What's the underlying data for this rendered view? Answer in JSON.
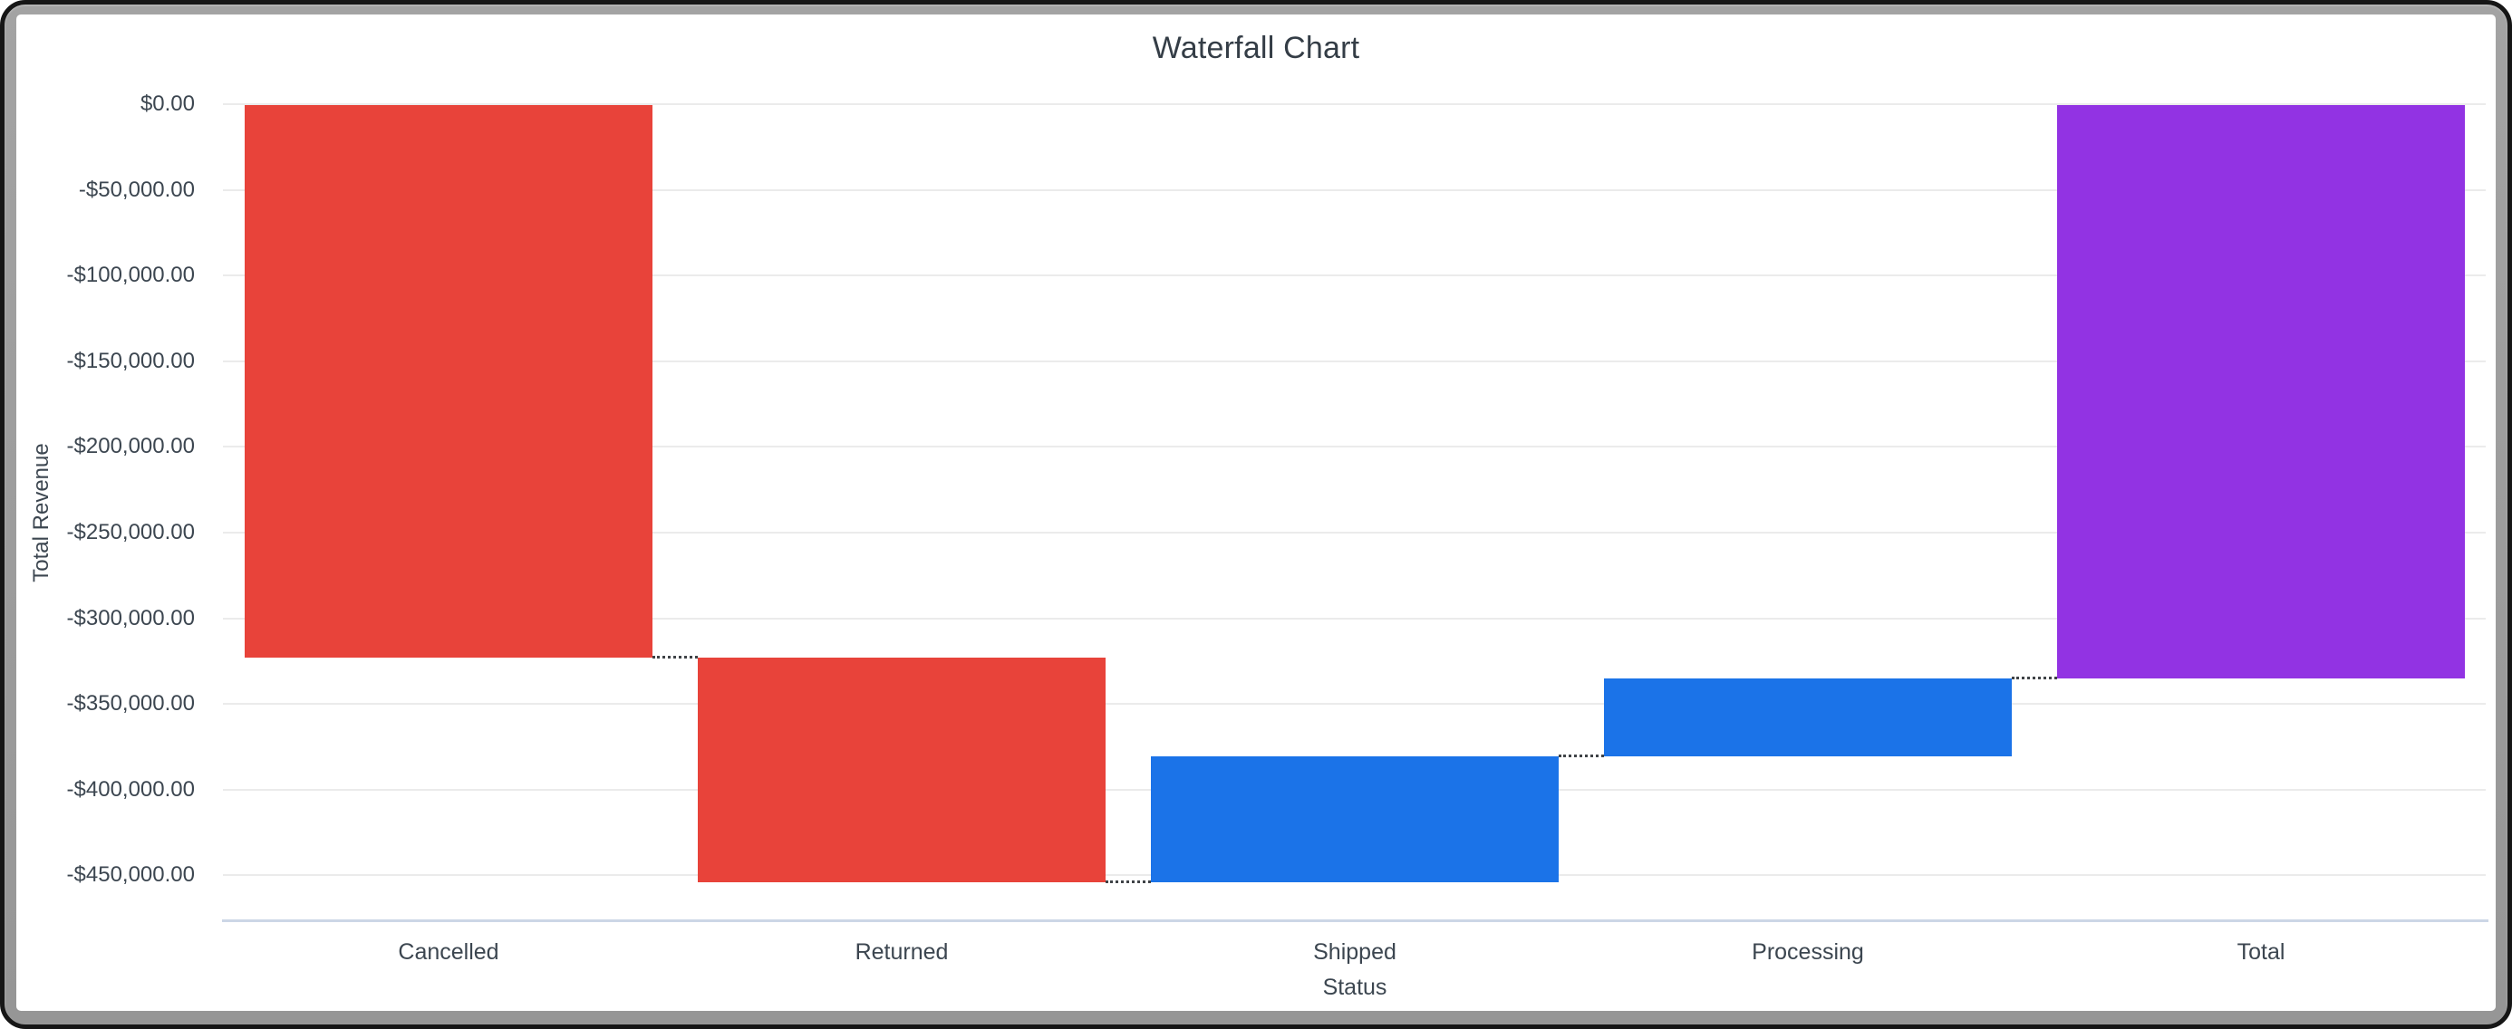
{
  "chart": {
    "title": "Waterfall Chart",
    "x_axis_title": "Status",
    "y_axis_title": "Total Revenue"
  },
  "chart_data": {
    "type": "bar",
    "subtype": "waterfall",
    "title": "Waterfall Chart",
    "xlabel": "Status",
    "ylabel": "Total Revenue",
    "categories": [
      "Cancelled",
      "Returned",
      "Shipped",
      "Processing",
      "Total"
    ],
    "values": [
      -322500,
      -131000,
      73500,
      45500,
      -334500
    ],
    "is_total_bar": [
      false,
      false,
      false,
      false,
      true
    ],
    "cumulative_levels": [
      0,
      -322500,
      -453500,
      -380000,
      -334500
    ],
    "bar_colors": [
      "#E8433A",
      "#E8433A",
      "#1B73E8",
      "#1B73E8",
      "#9233E3"
    ],
    "y_tick_labels": [
      "$0.00",
      "-$50,000.00",
      "-$100,000.00",
      "-$150,000.00",
      "-$200,000.00",
      "-$250,000.00",
      "-$300,000.00",
      "-$350,000.00",
      "-$400,000.00",
      "-$450,000.00"
    ],
    "y_tick_values": [
      0,
      -50000,
      -100000,
      -150000,
      -200000,
      -250000,
      -300000,
      -350000,
      -400000,
      -450000
    ],
    "ylim": [
      -476500,
      0
    ],
    "grid": true,
    "legend_position": "none",
    "connector_style": "dotted"
  },
  "colors": {
    "decrease": "#E8433A",
    "increase": "#1B73E8",
    "total": "#9233E3",
    "gridline": "#ebebeb",
    "axis_line": "#ccd6e6",
    "text": "#3c4650",
    "frame_gray": "#9e9e9e"
  }
}
